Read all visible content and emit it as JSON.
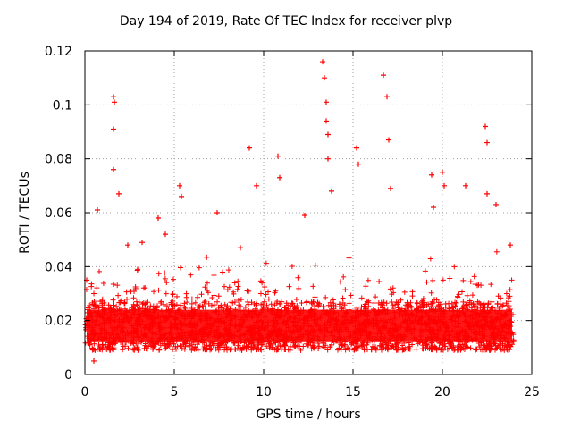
{
  "chart_data": {
    "type": "scatter",
    "title": "Day 194 of 2019, Rate Of TEC Index for receiver plvp",
    "xlabel": "GPS time / hours",
    "ylabel": "ROTI / TECUs",
    "xlim": [
      0,
      25
    ],
    "ylim": [
      0,
      0.12
    ],
    "xticks": [
      0,
      5,
      10,
      15,
      20,
      25
    ],
    "xtick_labels": [
      "0",
      "5",
      "10",
      "15",
      "20",
      "25"
    ],
    "yticks": [
      0,
      0.02,
      0.04,
      0.06,
      0.08,
      0.1,
      0.12
    ],
    "ytick_labels": [
      "0",
      "0.02",
      "0.04",
      "0.06",
      "0.08",
      "0.1",
      "0.12"
    ],
    "grid": true,
    "marker": "+",
    "color": "#ff0000",
    "series": [
      {
        "name": "ROTI",
        "x": [
          0.1,
          0.2,
          0.5,
          0.7,
          1.6,
          1.6,
          1.6,
          1.65,
          1.9,
          2.4,
          3.2,
          4.1,
          4.5,
          5.3,
          5.4,
          7.4,
          8.7,
          9.2,
          9.6,
          10.8,
          10.9,
          12.3,
          13.3,
          13.4,
          13.5,
          13.5,
          13.6,
          13.6,
          13.8,
          15.2,
          15.3,
          16.7,
          16.9,
          17.0,
          17.1,
          19.4,
          19.5,
          20.0,
          20.1,
          21.3,
          22.4,
          22.5,
          22.5,
          23.0,
          23.8
        ],
        "values": [
          0.035,
          0.02,
          0.005,
          0.061,
          0.103,
          0.091,
          0.076,
          0.101,
          0.067,
          0.048,
          0.049,
          0.058,
          0.052,
          0.07,
          0.066,
          0.06,
          0.047,
          0.084,
          0.07,
          0.081,
          0.073,
          0.059,
          0.116,
          0.11,
          0.101,
          0.094,
          0.089,
          0.08,
          0.068,
          0.084,
          0.078,
          0.111,
          0.103,
          0.087,
          0.069,
          0.074,
          0.062,
          0.075,
          0.07,
          0.07,
          0.092,
          0.086,
          0.067,
          0.063,
          0.048
        ]
      }
    ]
  }
}
